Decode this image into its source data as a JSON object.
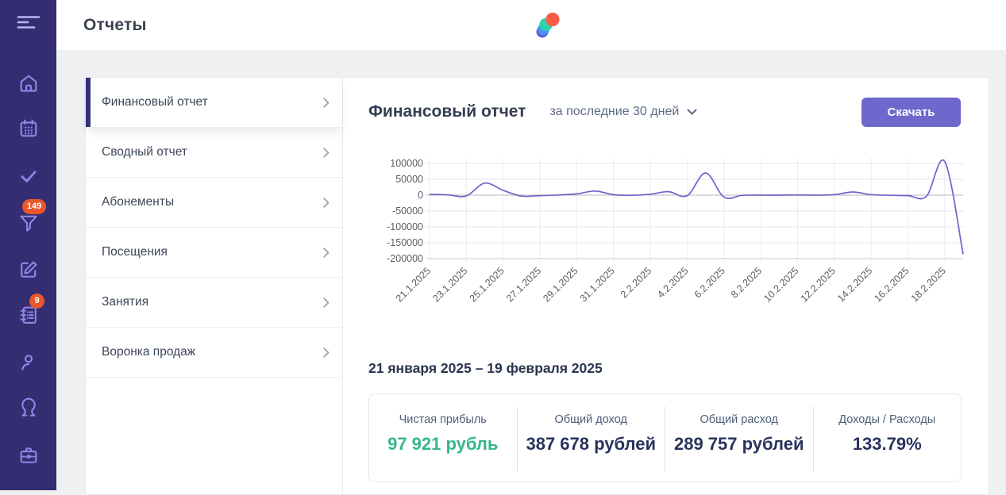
{
  "header": {
    "title": "Отчеты"
  },
  "sidebar": {
    "icons": [
      "hamburger-icon",
      "home-icon",
      "calendar-icon",
      "check-icon",
      "funnel-icon",
      "pencil-square-icon",
      "journal-icon",
      "person-icon",
      "person-female-icon",
      "briefcase-icon"
    ],
    "badges": {
      "funnel": "149",
      "journal": "9"
    }
  },
  "report_menu": {
    "items": [
      {
        "label": "Финансовый отчет",
        "active": true
      },
      {
        "label": "Сводный отчет",
        "active": false
      },
      {
        "label": "Абонементы",
        "active": false
      },
      {
        "label": "Посещения",
        "active": false
      },
      {
        "label": "Занятия",
        "active": false
      },
      {
        "label": "Воронка продаж",
        "active": false
      }
    ]
  },
  "report": {
    "title": "Финансовый отчет",
    "period_label": "за последние 30 дней",
    "download_label": "Скачать",
    "date_range": "21 января 2025 – 19 февраля 2025",
    "stats": [
      {
        "key": "net-profit",
        "label": "Чистая прибыль",
        "value": "97 921 рубль",
        "color": "#35b789"
      },
      {
        "key": "total-income",
        "label": "Общий доход",
        "value": "387 678 рублей",
        "color": "#29335c"
      },
      {
        "key": "total-expense",
        "label": "Общий расход",
        "value": "289 757 рублей",
        "color": "#29335c"
      },
      {
        "key": "income-expense-ratio",
        "label": "Доходы / Расходы",
        "value": "133.79%",
        "color": "#29335c"
      }
    ]
  },
  "chart_data": {
    "type": "line",
    "title": "",
    "xlabel": "",
    "ylabel": "",
    "x": [
      "21.1.2025",
      "22.1.2025",
      "23.1.2025",
      "24.1.2025",
      "25.1.2025",
      "26.1.2025",
      "27.1.2025",
      "28.1.2025",
      "29.1.2025",
      "30.1.2025",
      "31.1.2025",
      "1.2.2025",
      "2.2.2025",
      "3.2.2025",
      "4.2.2025",
      "5.2.2025",
      "6.2.2025",
      "7.2.2025",
      "8.2.2025",
      "9.2.2025",
      "10.2.2025",
      "11.2.2025",
      "12.2.2025",
      "13.2.2025",
      "14.2.2025",
      "15.2.2025",
      "16.2.2025",
      "17.2.2025",
      "18.2.2025",
      "19.2.2025"
    ],
    "values": [
      2500,
      1000,
      -2500,
      38000,
      15000,
      -3000,
      -1500,
      500,
      4000,
      13000,
      1500,
      -500,
      3000,
      11000,
      -2000,
      70000,
      -6000,
      -500,
      0,
      0,
      500,
      0,
      1500,
      10000,
      1500,
      -500,
      -1500,
      -4000,
      106000,
      -186000
    ],
    "x_tick_labels": [
      "21.1.2025",
      "23.1.2025",
      "25.1.2025",
      "27.1.2025",
      "29.1.2025",
      "31.1.2025",
      "2.2.2025",
      "4.2.2025",
      "6.2.2025",
      "8.2.2025",
      "10.2.2025",
      "12.2.2025",
      "14.2.2025",
      "16.2.2025",
      "18.2.2025"
    ],
    "tick_every": 2,
    "y_ticks": [
      100000,
      50000,
      0,
      -50000,
      -100000,
      -150000,
      -200000
    ],
    "ylim": [
      -200000,
      100000
    ],
    "grid": true,
    "legend": "none",
    "colors": {
      "line": "#6c64c8",
      "grid_h": "#e5e5e9",
      "grid_v": "#ececef",
      "grid_zero": "#b6bac0",
      "axis_bottom": "#c9ccd1",
      "axis_text": "#585f66"
    }
  }
}
